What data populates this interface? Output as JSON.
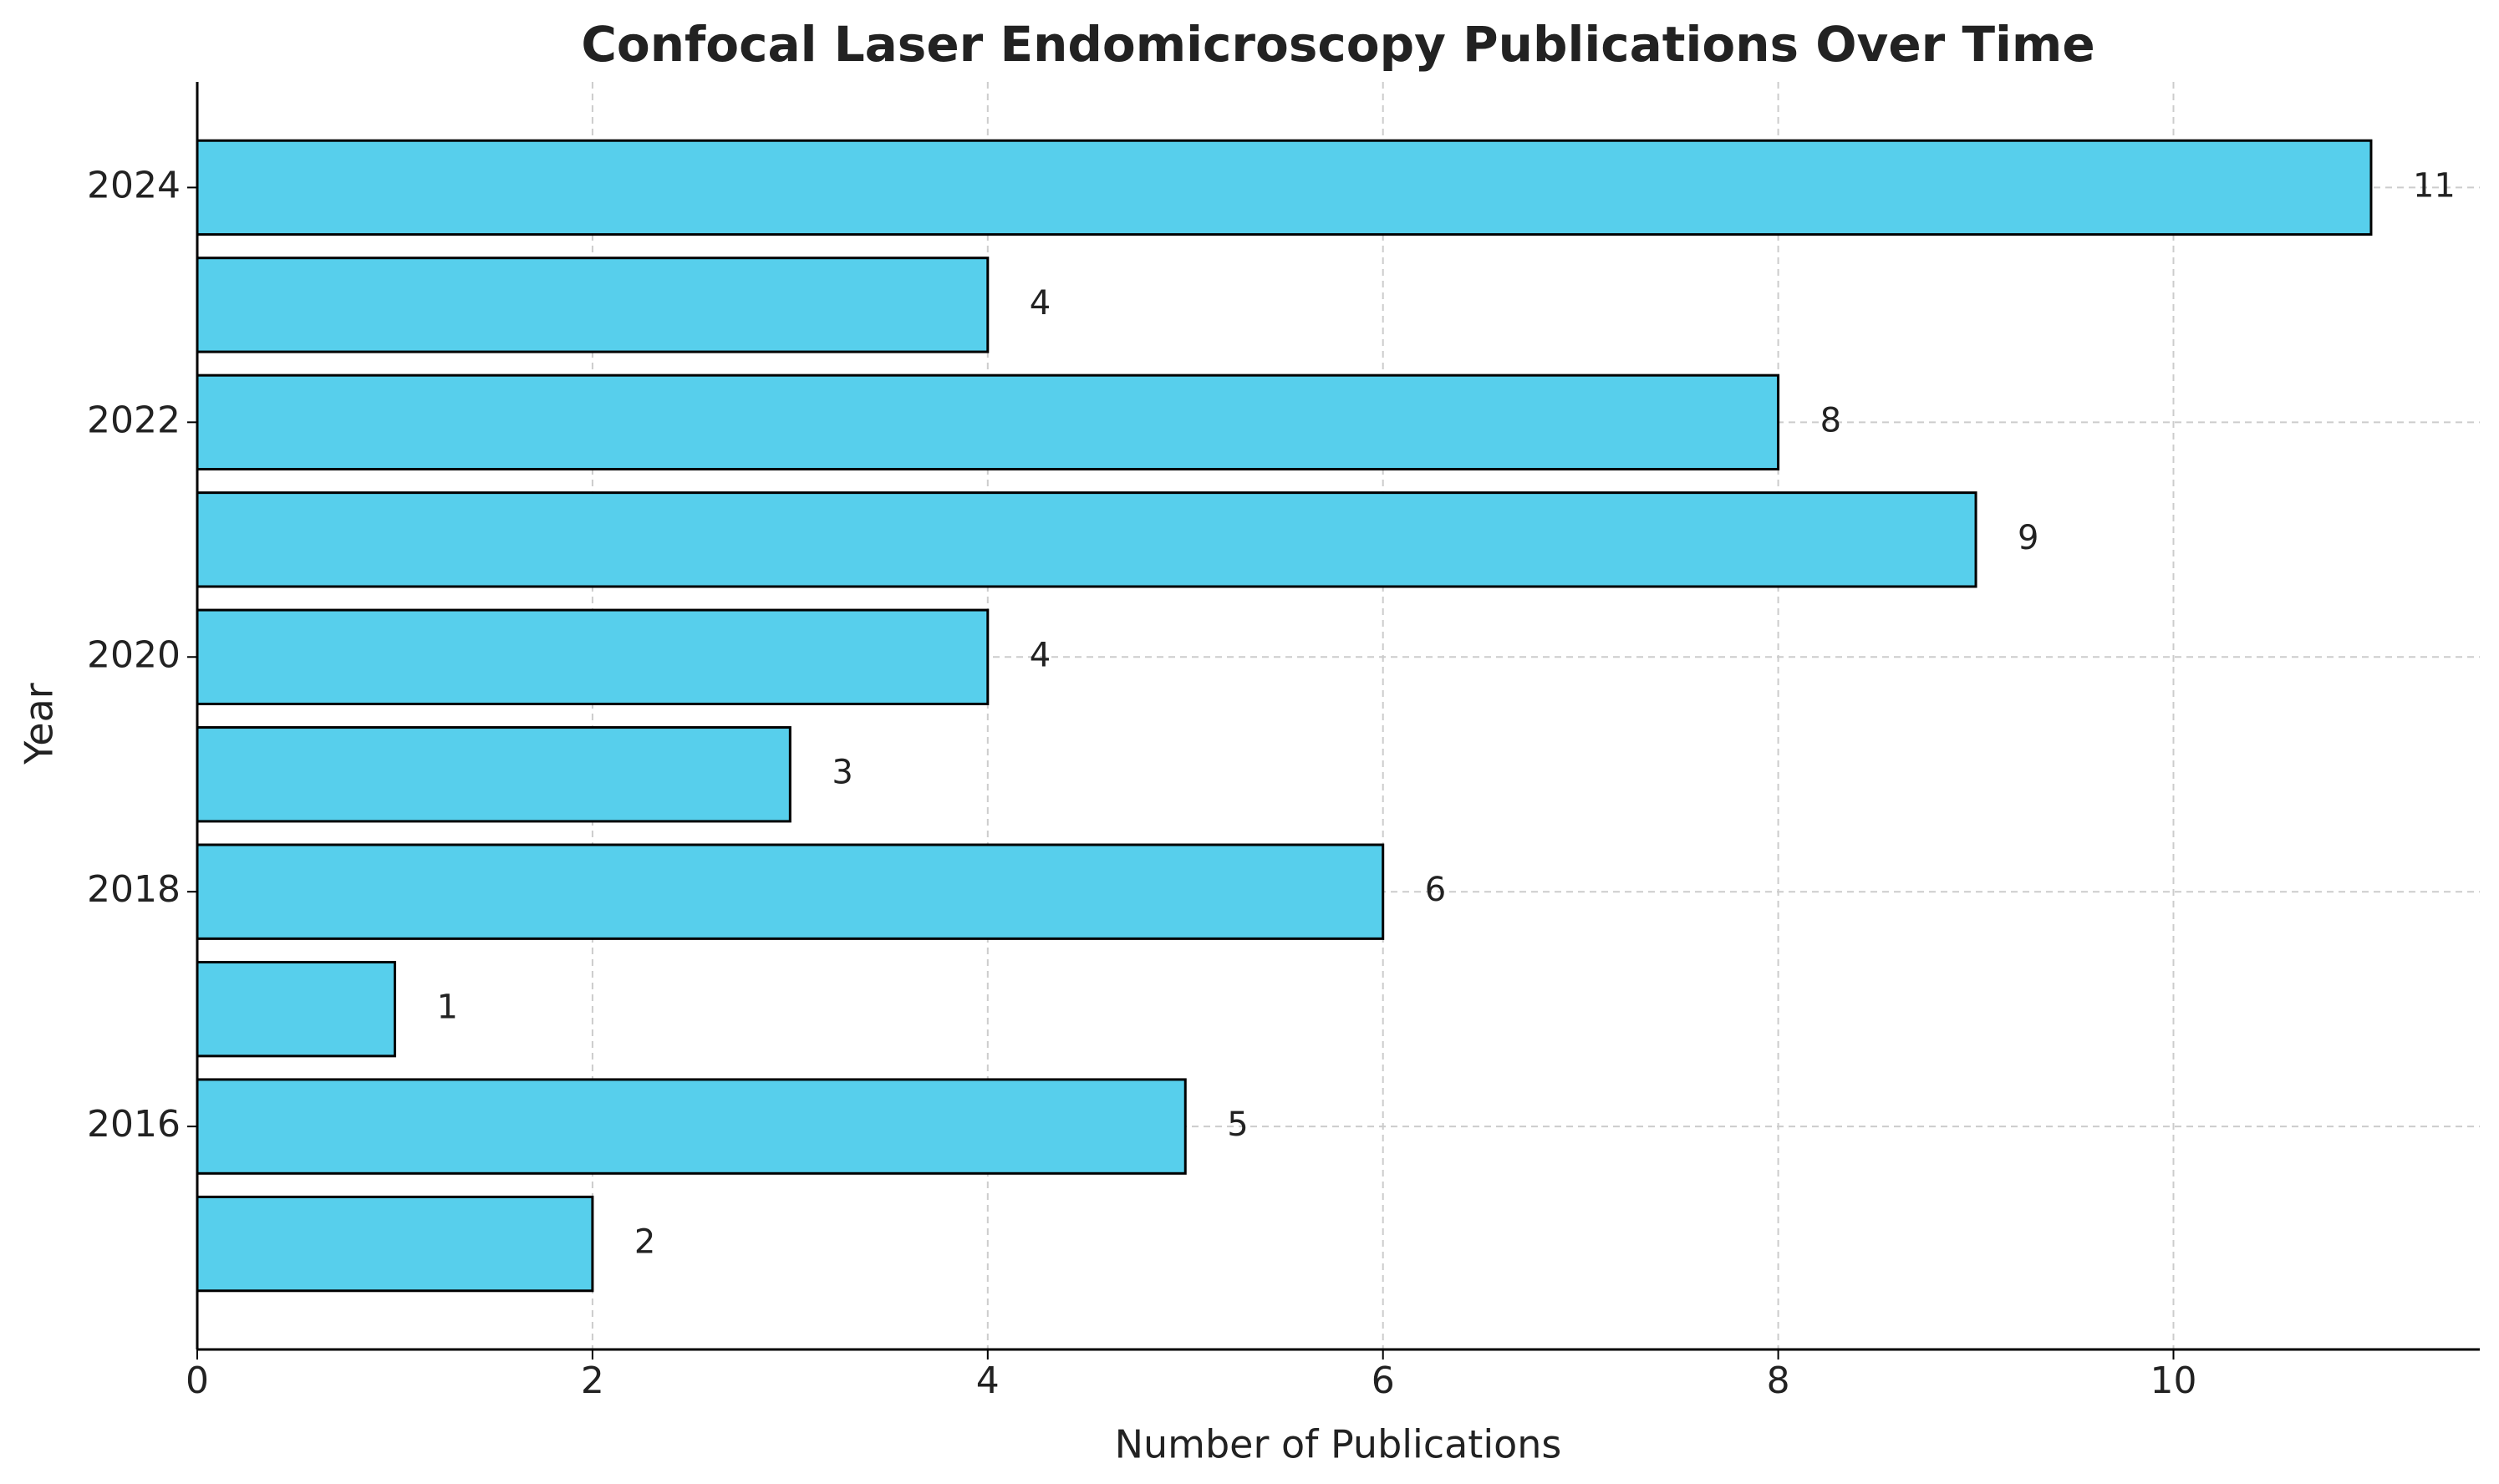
{
  "chart_data": {
    "type": "bar",
    "orientation": "horizontal",
    "title": "Confocal Laser Endomicroscopy Publications Over Time",
    "x_label": "Number of Publications",
    "y_label": "Year",
    "categories": [
      null,
      "2016",
      null,
      "2018",
      null,
      "2020",
      null,
      "2022",
      null,
      "2024"
    ],
    "values": [
      2,
      5,
      1,
      6,
      3,
      4,
      9,
      8,
      4,
      11
    ],
    "color": "#57cfec",
    "xlim": [
      0,
      11.55
    ],
    "xticks": [
      0,
      2,
      4,
      6,
      8,
      10
    ],
    "grid": true
  }
}
